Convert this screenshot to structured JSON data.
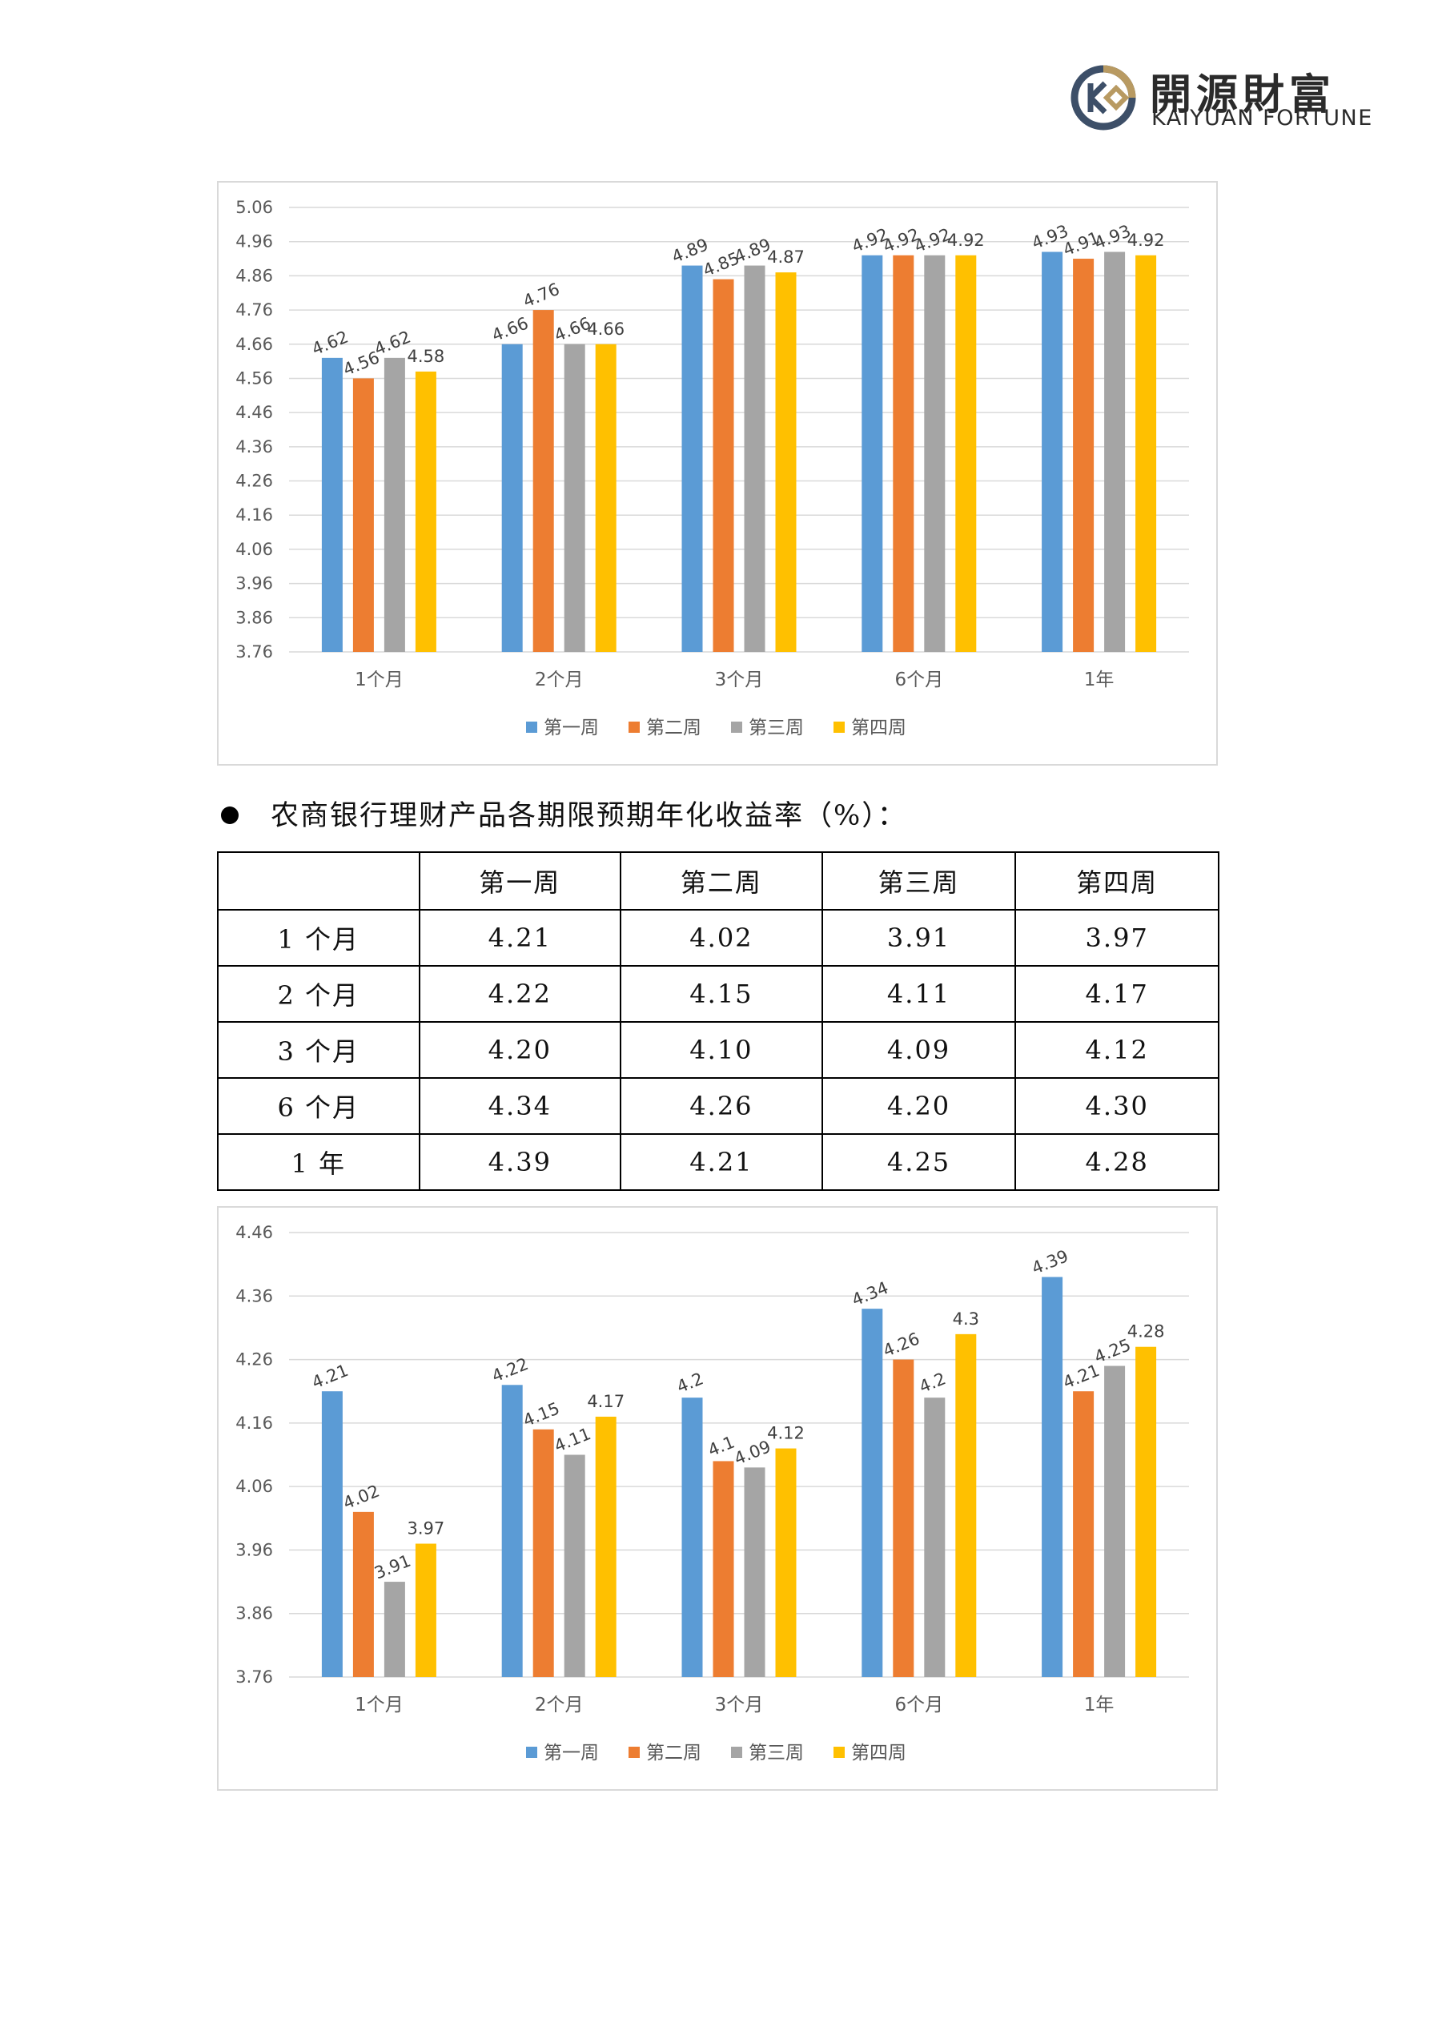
{
  "header": {
    "brand_cn": "開源財富",
    "brand_en": "KAIYUAN FORTUNE"
  },
  "section": {
    "title": "农商银行理财产品各期限预期年化收益率（%）："
  },
  "table": {
    "columns": [
      "",
      "第一周",
      "第二周",
      "第三周",
      "第四周"
    ],
    "rows": [
      [
        "1 个月",
        "4.21",
        "4.02",
        "3.91",
        "3.97"
      ],
      [
        "2 个月",
        "4.22",
        "4.15",
        "4.11",
        "4.17"
      ],
      [
        "3 个月",
        "4.20",
        "4.10",
        "4.09",
        "4.12"
      ],
      [
        "6 个月",
        "4.34",
        "4.26",
        "4.20",
        "4.30"
      ],
      [
        "1 年",
        "4.39",
        "4.21",
        "4.25",
        "4.28"
      ]
    ]
  },
  "colors": {
    "week1": "#5b9bd5",
    "week2": "#ed7d31",
    "week3": "#a5a5a5",
    "week4": "#ffc000"
  },
  "chart_data": [
    {
      "type": "bar",
      "categories": [
        "1个月",
        "2个月",
        "3个月",
        "6个月",
        "1年"
      ],
      "series": [
        {
          "name": "第一周",
          "values": [
            4.62,
            4.66,
            4.89,
            4.92,
            4.93
          ],
          "labels": [
            "4.62",
            "4.66",
            "4.89",
            "4.92",
            "4.93"
          ]
        },
        {
          "name": "第二周",
          "values": [
            4.56,
            4.76,
            4.85,
            4.92,
            4.91
          ],
          "labels": [
            "4.56",
            "4.76",
            "4.85",
            "4.92",
            "4.91"
          ]
        },
        {
          "name": "第三周",
          "values": [
            4.62,
            4.66,
            4.89,
            4.92,
            4.93
          ],
          "labels": [
            "4.62",
            "4.66",
            "4.89",
            "4.92",
            "4.93"
          ]
        },
        {
          "name": "第四周",
          "values": [
            4.58,
            4.66,
            4.87,
            4.92,
            4.92
          ],
          "labels": [
            "4.58",
            "4.66",
            "4.87",
            "4.92",
            "4.92"
          ]
        }
      ],
      "yticks": [
        "5.06",
        "4.96",
        "4.86",
        "4.76",
        "4.66",
        "4.56",
        "4.46",
        "4.36",
        "4.26",
        "4.16",
        "4.06",
        "3.96",
        "3.86",
        "3.76"
      ],
      "ylim": [
        3.76,
        5.06
      ],
      "grid": true,
      "legend": "bottom"
    },
    {
      "type": "bar",
      "categories": [
        "1个月",
        "2个月",
        "3个月",
        "6个月",
        "1年"
      ],
      "series": [
        {
          "name": "第一周",
          "values": [
            4.21,
            4.22,
            4.2,
            4.34,
            4.39
          ],
          "labels": [
            "4.21",
            "4.22",
            "4.2",
            "4.34",
            "4.39"
          ]
        },
        {
          "name": "第二周",
          "values": [
            4.02,
            4.15,
            4.1,
            4.26,
            4.21
          ],
          "labels": [
            "4.02",
            "4.15",
            "4.1",
            "4.26",
            "4.21"
          ]
        },
        {
          "name": "第三周",
          "values": [
            3.91,
            4.11,
            4.09,
            4.2,
            4.25
          ],
          "labels": [
            "3.91",
            "4.11",
            "4.09",
            "4.2",
            "4.25"
          ]
        },
        {
          "name": "第四周",
          "values": [
            3.97,
            4.17,
            4.12,
            4.3,
            4.28
          ],
          "labels": [
            "3.97",
            "4.17",
            "4.12",
            "4.3",
            "4.28"
          ]
        }
      ],
      "yticks": [
        "4.46",
        "4.36",
        "4.26",
        "4.16",
        "4.06",
        "3.96",
        "3.86",
        "3.76"
      ],
      "ylim": [
        3.76,
        4.46
      ],
      "grid": true,
      "legend": "bottom"
    }
  ]
}
